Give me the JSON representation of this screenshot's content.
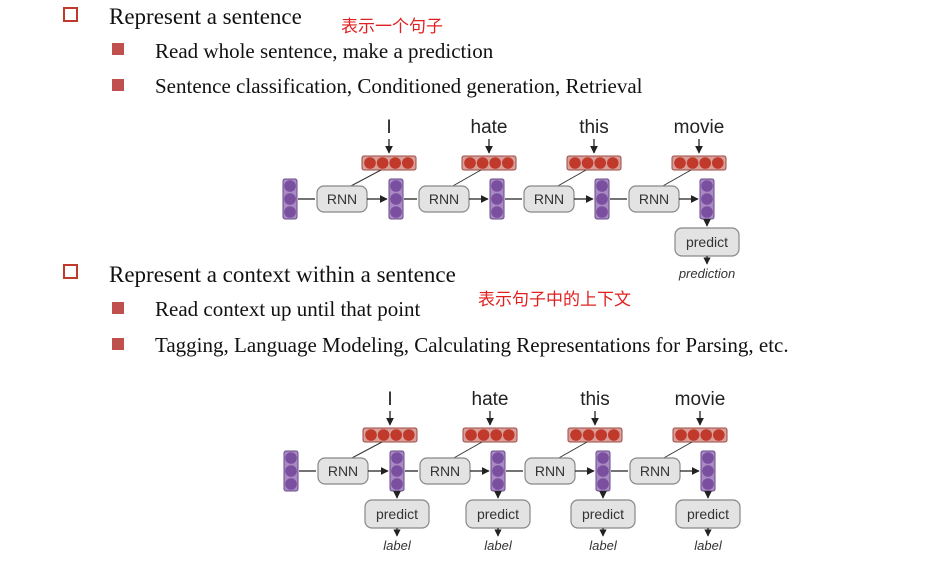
{
  "colors": {
    "accent": "#c0392b",
    "note": "#e02020",
    "embedding_red": "#c0392b",
    "hidden_purple": "#7b4fa0",
    "box_fill": "#e3e3e3",
    "box_stroke": "#888888"
  },
  "section1": {
    "heading": "Represent a sentence",
    "note": "表示一个句子",
    "items": [
      "Read whole sentence, make a prediction",
      "Sentence classification, Conditioned generation, Retrieval"
    ]
  },
  "section2": {
    "heading": "Represent a context within a sentence",
    "note": "表示句子中的上下文",
    "items": [
      "Read context up until that point",
      "Tagging, Language Modeling, Calculating Representations for Parsing, etc."
    ]
  },
  "diagram1": {
    "words": [
      "I",
      "hate",
      "this",
      "movie"
    ],
    "cell_label": "RNN",
    "predict_label": "predict",
    "output_label": "prediction"
  },
  "diagram2": {
    "words": [
      "I",
      "hate",
      "this",
      "movie"
    ],
    "cell_label": "RNN",
    "predict_label": "predict",
    "output_labels": [
      "label",
      "label",
      "label",
      "label"
    ]
  }
}
